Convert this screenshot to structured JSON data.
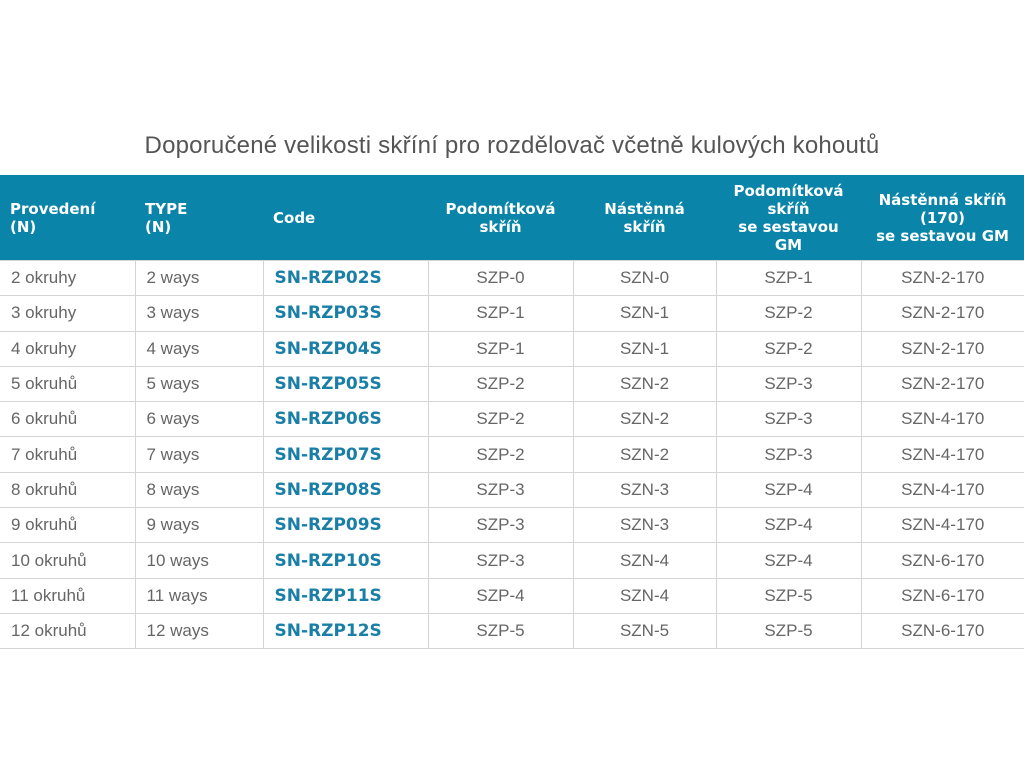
{
  "title": "Doporučené velikosti skříní pro rozdělovač včetně kulových kohoutů",
  "colors": {
    "header_bg": "#0a84a8",
    "code_text": "#1a7fa6"
  },
  "columns": [
    "Provedení (N)",
    "TYPE (N)",
    "Code",
    "Podomítková skříň",
    "Nástěnná skříň",
    "Podomítková skříň se sestavou GM",
    "Nástěnná skříň (170) se sestavou GM"
  ],
  "rows": [
    [
      "2 okruhy",
      "2 ways",
      "SN-RZP02S",
      "SZP-0",
      "SZN-0",
      "SZP-1",
      "SZN-2-170"
    ],
    [
      "3 okruhy",
      "3 ways",
      "SN-RZP03S",
      "SZP-1",
      "SZN-1",
      "SZP-2",
      "SZN-2-170"
    ],
    [
      "4 okruhy",
      "4 ways",
      "SN-RZP04S",
      "SZP-1",
      "SZN-1",
      "SZP-2",
      "SZN-2-170"
    ],
    [
      "5 okruhů",
      "5 ways",
      "SN-RZP05S",
      "SZP-2",
      "SZN-2",
      "SZP-3",
      "SZN-2-170"
    ],
    [
      "6 okruhů",
      "6 ways",
      "SN-RZP06S",
      "SZP-2",
      "SZN-2",
      "SZP-3",
      "SZN-4-170"
    ],
    [
      "7 okruhů",
      "7 ways",
      "SN-RZP07S",
      "SZP-2",
      "SZN-2",
      "SZP-3",
      "SZN-4-170"
    ],
    [
      "8 okruhů",
      "8 ways",
      "SN-RZP08S",
      "SZP-3",
      "SZN-3",
      "SZP-4",
      "SZN-4-170"
    ],
    [
      "9 okruhů",
      "9 ways",
      "SN-RZP09S",
      "SZP-3",
      "SZN-3",
      "SZP-4",
      "SZN-4-170"
    ],
    [
      "10 okruhů",
      "10 ways",
      "SN-RZP10S",
      "SZP-3",
      "SZN-4",
      "SZP-4",
      "SZN-6-170"
    ],
    [
      "11 okruhů",
      "11 ways",
      "SN-RZP11S",
      "SZP-4",
      "SZN-4",
      "SZP-5",
      "SZN-6-170"
    ],
    [
      "12 okruhů",
      "12 ways",
      "SN-RZP12S",
      "SZP-5",
      "SZN-5",
      "SZP-5",
      "SZN-6-170"
    ]
  ]
}
